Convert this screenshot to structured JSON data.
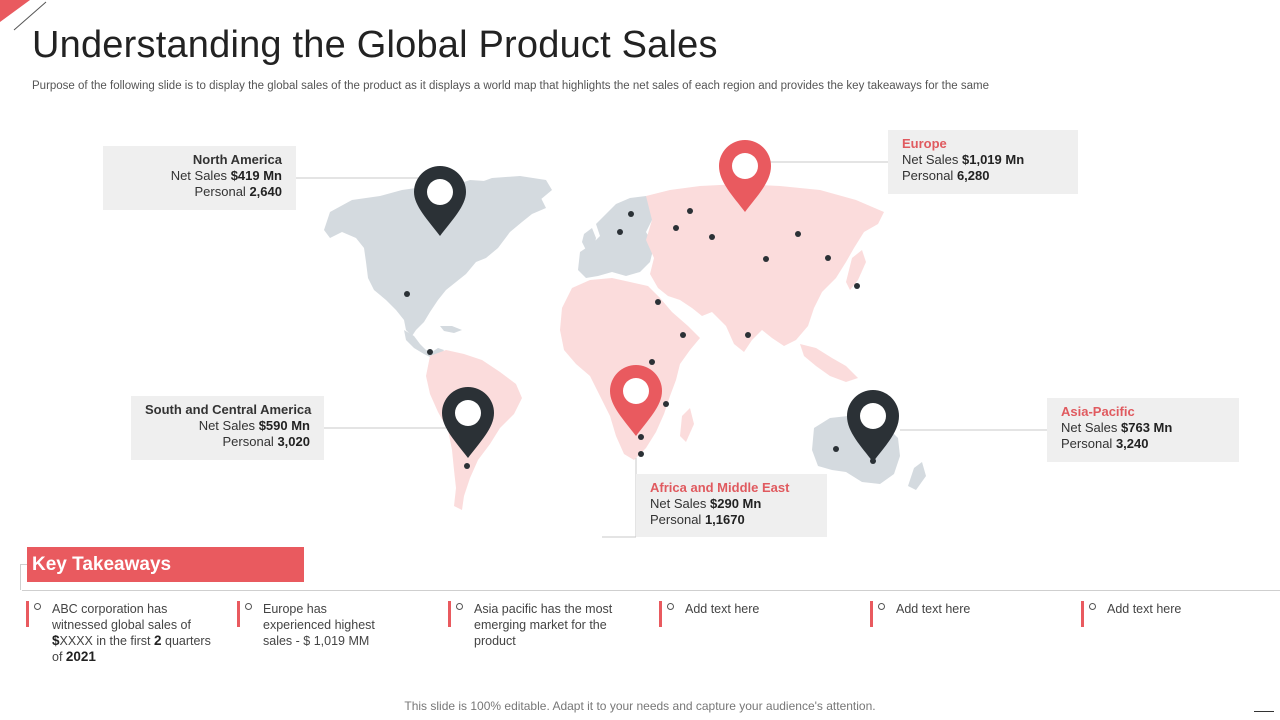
{
  "header": {
    "title": "Understanding the Global Product Sales",
    "subtitle": "Purpose of the following slide is to display the global sales of the product as it displays a world map that highlights the net sales of each region and provides the key takeaways for the same"
  },
  "colors": {
    "accent": "#e95a5f",
    "dark_pin": "#2b3136",
    "map_grey": "#d4dadf",
    "map_pink": "#fbdcdc",
    "box_bg": "#efefef"
  },
  "regions": {
    "north_america": {
      "name": "North America",
      "sales_label": "Net Sales",
      "sales_value": "$419 Mn",
      "personal_label": "Personal",
      "personal_value": "2,640"
    },
    "europe": {
      "name": "Europe",
      "sales_label": "Net Sales",
      "sales_value": "$1,019 Mn",
      "personal_label": "Personal",
      "personal_value": "6,280"
    },
    "south_america": {
      "name": "South and Central America",
      "sales_label": "Net Sales",
      "sales_value": "$590 Mn",
      "personal_label": "Personal",
      "personal_value": "3,020"
    },
    "asia_pacific": {
      "name": "Asia-Pacific",
      "sales_label": "Net Sales",
      "sales_value": "$763 Mn",
      "personal_label": "Personal",
      "personal_value": "3,240"
    },
    "africa": {
      "name": "Africa and Middle East",
      "sales_label": "Net Sales",
      "sales_value": "$290 Mn",
      "personal_label": "Personal",
      "personal_value": "1,1670"
    }
  },
  "key_takeaways": {
    "title": "Key Takeaways",
    "items": [
      {
        "t1": "ABC corporation has witnessed global sales of ",
        "b1": "$",
        "t2": "XXXX in the first ",
        "b2": "2",
        "t3": " quarters of ",
        "b3": "2021"
      },
      {
        "text": "Europe has experienced highest sales  - $ 1,019 MM"
      },
      {
        "text": "Asia pacific has the most emerging market for the product"
      },
      {
        "text": "Add text here"
      },
      {
        "text": "Add text here"
      },
      {
        "text": "Add text here"
      }
    ]
  },
  "footer": {
    "text": "This slide is 100% editable. Adapt it to your needs and capture your audience's attention."
  }
}
